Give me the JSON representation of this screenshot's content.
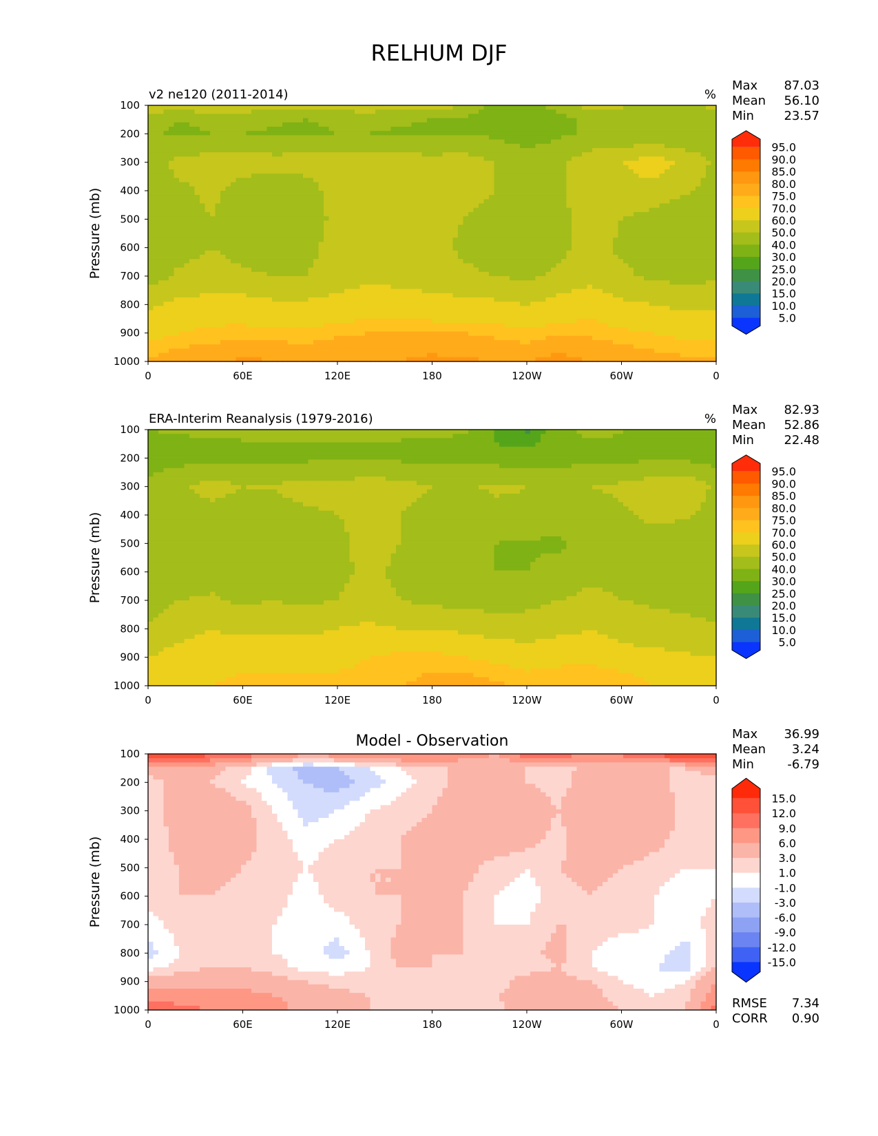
{
  "title": "RELHUM DJF",
  "chart_data": [
    {
      "type": "heatmap",
      "title": "v2 ne120 (2011-2014)",
      "units": "%",
      "ylabel": "Pressure (mb)",
      "yticks": [
        100,
        200,
        300,
        400,
        500,
        600,
        700,
        800,
        900,
        1000
      ],
      "ylim": [
        1000,
        100
      ],
      "xticks": [
        "0",
        "60E",
        "120E",
        "180",
        "120W",
        "60W",
        "0"
      ],
      "xlim": [
        0,
        360
      ],
      "stats": {
        "Max": "87.03",
        "Mean": "56.10",
        "Min": "23.57"
      },
      "colorbar": {
        "labels": [
          "95.0",
          "90.0",
          "85.0",
          "80.0",
          "75.0",
          "70.0",
          "60.0",
          "50.0",
          "40.0",
          "30.0",
          "25.0",
          "20.0",
          "15.0",
          "10.0",
          "5.0"
        ],
        "colors": [
          "#ff2d0a",
          "#ff5a00",
          "#ff7a00",
          "#ff9710",
          "#ffab1a",
          "#ffc21f",
          "#ecd01c",
          "#c7c61c",
          "#a3bd1a",
          "#7fb214",
          "#55a51a",
          "#3f9145",
          "#3a8a78",
          "#0f7896",
          "#1d5fd6",
          "#0a35ff"
        ]
      },
      "field": {
        "lon": [
          0,
          20,
          40,
          60,
          80,
          100,
          120,
          140,
          160,
          180,
          200,
          220,
          240,
          260,
          280,
          300,
          320,
          340,
          360
        ],
        "lev": [
          100,
          150,
          200,
          300,
          400,
          500,
          600,
          700,
          800,
          850,
          900,
          950,
          1000
        ],
        "values": [
          [
            55,
            57,
            58,
            57,
            56,
            55,
            56,
            57,
            56,
            55,
            50,
            35,
            35,
            45,
            54,
            52,
            45,
            45,
            55
          ],
          [
            45,
            40,
            42,
            42,
            41,
            40,
            42,
            42,
            41,
            40,
            38,
            32,
            30,
            36,
            42,
            40,
            40,
            40,
            45
          ],
          [
            42,
            38,
            40,
            40,
            39,
            38,
            40,
            40,
            39,
            38,
            40,
            38,
            35,
            38,
            42,
            41,
            42,
            40,
            42
          ],
          [
            45,
            53,
            55,
            55,
            54,
            55,
            55,
            55,
            55,
            54,
            55,
            50,
            45,
            48,
            56,
            60,
            65,
            58,
            48
          ],
          [
            44,
            48,
            52,
            46,
            42,
            45,
            55,
            56,
            56,
            55,
            53,
            50,
            46,
            48,
            55,
            56,
            57,
            52,
            46
          ],
          [
            42,
            46,
            50,
            45,
            42,
            44,
            53,
            55,
            56,
            54,
            50,
            46,
            44,
            47,
            55,
            50,
            46,
            40,
            44
          ],
          [
            42,
            46,
            50,
            46,
            43,
            46,
            55,
            56,
            56,
            54,
            48,
            46,
            44,
            47,
            55,
            48,
            46,
            45,
            45
          ],
          [
            45,
            52,
            55,
            52,
            50,
            50,
            56,
            58,
            57,
            55,
            52,
            50,
            48,
            52,
            56,
            52,
            48,
            47,
            48
          ],
          [
            58,
            63,
            63,
            64,
            62,
            62,
            63,
            65,
            64,
            64,
            63,
            62,
            60,
            64,
            68,
            62,
            60,
            58,
            58
          ],
          [
            62,
            66,
            68,
            68,
            66,
            67,
            68,
            70,
            70,
            69,
            68,
            68,
            66,
            68,
            70,
            66,
            64,
            62,
            64
          ],
          [
            66,
            70,
            72,
            73,
            72,
            72,
            74,
            75,
            76,
            76,
            75,
            74,
            72,
            74,
            74,
            72,
            70,
            68,
            68
          ],
          [
            72,
            75,
            76,
            78,
            77,
            76,
            77,
            78,
            79,
            79,
            78,
            77,
            76,
            79,
            77,
            76,
            74,
            72,
            72
          ],
          [
            76,
            78,
            79,
            81,
            80,
            79,
            79,
            80,
            80,
            81,
            81,
            80,
            80,
            82,
            80,
            79,
            78,
            77,
            76
          ]
        ]
      }
    },
    {
      "type": "heatmap",
      "title": "ERA-Interim Reanalysis (1979-2016)",
      "units": "%",
      "ylabel": "Pressure (mb)",
      "yticks": [
        100,
        200,
        300,
        400,
        500,
        600,
        700,
        800,
        900,
        1000
      ],
      "ylim": [
        1000,
        100
      ],
      "xticks": [
        "0",
        "60E",
        "120E",
        "180",
        "120W",
        "60W",
        "0"
      ],
      "xlim": [
        0,
        360
      ],
      "stats": {
        "Max": "82.93",
        "Mean": "52.86",
        "Min": "22.48"
      },
      "colorbar": {
        "labels": [
          "95.0",
          "90.0",
          "85.0",
          "80.0",
          "75.0",
          "70.0",
          "60.0",
          "50.0",
          "40.0",
          "30.0",
          "25.0",
          "20.0",
          "15.0",
          "10.0",
          "5.0"
        ],
        "colors": [
          "#ff2d0a",
          "#ff5a00",
          "#ff7a00",
          "#ff9710",
          "#ffab1a",
          "#ffc21f",
          "#ecd01c",
          "#c7c61c",
          "#a3bd1a",
          "#7fb214",
          "#55a51a",
          "#3f9145",
          "#3a8a78",
          "#0f7896",
          "#1d5fd6",
          "#0a35ff"
        ]
      },
      "field": {
        "lon": [
          0,
          20,
          40,
          60,
          80,
          100,
          120,
          140,
          160,
          180,
          200,
          220,
          240,
          260,
          280,
          300,
          320,
          340,
          360
        ],
        "lev": [
          100,
          150,
          200,
          300,
          400,
          500,
          600,
          700,
          800,
          850,
          900,
          950,
          1000
        ],
        "values": [
          [
            40,
            42,
            45,
            46,
            47,
            48,
            48,
            47,
            46,
            45,
            42,
            30,
            24,
            34,
            45,
            42,
            32,
            30,
            38
          ],
          [
            36,
            36,
            38,
            38,
            38,
            38,
            38,
            38,
            38,
            38,
            36,
            30,
            28,
            34,
            38,
            36,
            34,
            34,
            36
          ],
          [
            36,
            36,
            38,
            38,
            38,
            38,
            38,
            38,
            38,
            38,
            38,
            36,
            34,
            36,
            38,
            38,
            38,
            38,
            36
          ],
          [
            42,
            48,
            54,
            50,
            51,
            54,
            54,
            55,
            54,
            50,
            48,
            52,
            50,
            48,
            50,
            52,
            56,
            58,
            48
          ],
          [
            40,
            44,
            46,
            44,
            45,
            48,
            50,
            52,
            50,
            46,
            44,
            46,
            48,
            46,
            46,
            48,
            53,
            52,
            46
          ],
          [
            40,
            42,
            44,
            42,
            44,
            46,
            48,
            53,
            50,
            44,
            42,
            40,
            39,
            38,
            44,
            46,
            45,
            40,
            40
          ],
          [
            40,
            42,
            44,
            42,
            44,
            46,
            48,
            52,
            48,
            44,
            42,
            40,
            40,
            44,
            48,
            48,
            44,
            42,
            40
          ],
          [
            44,
            50,
            52,
            48,
            50,
            48,
            50,
            54,
            50,
            48,
            46,
            46,
            47,
            50,
            52,
            50,
            48,
            46,
            44
          ],
          [
            52,
            58,
            60,
            58,
            58,
            58,
            60,
            62,
            60,
            60,
            58,
            56,
            55,
            58,
            60,
            58,
            56,
            54,
            52
          ],
          [
            56,
            60,
            62,
            62,
            62,
            62,
            63,
            64,
            66,
            66,
            64,
            62,
            60,
            62,
            62,
            60,
            58,
            56,
            54
          ],
          [
            60,
            64,
            66,
            68,
            68,
            68,
            68,
            70,
            72,
            72,
            70,
            68,
            66,
            68,
            68,
            66,
            64,
            62,
            60
          ],
          [
            62,
            66,
            68,
            70,
            70,
            70,
            70,
            71,
            74,
            75,
            75,
            73,
            70,
            71,
            72,
            70,
            68,
            66,
            64
          ],
          [
            64,
            68,
            70,
            72,
            72,
            72,
            72,
            72,
            75,
            76,
            77,
            76,
            74,
            75,
            74,
            73,
            70,
            68,
            66
          ]
        ]
      }
    },
    {
      "type": "heatmap",
      "title": "Model - Observation",
      "units": "",
      "ylabel": "Pressure (mb)",
      "yticks": [
        100,
        200,
        300,
        400,
        500,
        600,
        700,
        800,
        900,
        1000
      ],
      "ylim": [
        1000,
        100
      ],
      "xticks": [
        "0",
        "60E",
        "120E",
        "180",
        "120W",
        "60W",
        "0"
      ],
      "xlim": [
        0,
        360
      ],
      "stats": {
        "Max": "36.99",
        "Mean": "3.24",
        "Min": "-6.79"
      },
      "extra_stats": {
        "RMSE": "7.34",
        "CORR": "0.90"
      },
      "colorbar": {
        "labels": [
          "15.0",
          "12.0",
          "9.0",
          "6.0",
          "3.0",
          "1.0",
          "-1.0",
          "-3.0",
          "-6.0",
          "-9.0",
          "-12.0",
          "-15.0"
        ],
        "colors": [
          "#ff2a0a",
          "#ff5038",
          "#ff7060",
          "#ff9785",
          "#fbb4a8",
          "#fdd6cf",
          "#ffffff",
          "#d3dcfc",
          "#afbef8",
          "#8ea2f4",
          "#6b84f1",
          "#3f62f5",
          "#0a34ff"
        ]
      },
      "field": {
        "lon": [
          0,
          20,
          40,
          60,
          80,
          100,
          120,
          140,
          160,
          180,
          200,
          220,
          240,
          260,
          280,
          300,
          320,
          340,
          360
        ],
        "lev": [
          100,
          150,
          200,
          300,
          400,
          500,
          600,
          700,
          800,
          850,
          900,
          950,
          1000
        ],
        "values": [
          [
            14,
            15,
            13,
            11,
            9,
            7,
            8,
            10,
            10,
            10,
            8,
            6,
            11,
            11,
            9,
            10,
            13,
            15,
            16
          ],
          [
            4,
            4,
            4,
            2,
            -2,
            -4,
            -3,
            -1,
            1,
            3,
            3,
            3,
            3,
            3,
            3,
            3,
            3,
            3,
            4
          ],
          [
            2,
            4,
            3,
            1,
            -1,
            -3,
            -4,
            -2,
            0,
            2,
            4,
            5,
            3,
            2,
            4,
            3,
            4,
            2,
            2
          ],
          [
            1,
            5,
            6,
            4,
            1,
            -2,
            -1,
            1,
            2,
            3,
            5,
            6,
            5,
            3,
            6,
            6,
            6,
            2,
            1
          ],
          [
            1,
            4,
            6,
            4,
            2,
            0,
            1,
            2,
            3,
            4,
            5,
            5,
            4,
            2,
            5,
            5,
            4,
            2,
            1
          ],
          [
            2,
            3,
            4,
            3,
            2,
            1,
            2,
            3,
            3,
            4,
            4,
            2,
            1,
            3,
            4,
            3,
            2,
            1,
            1
          ],
          [
            2,
            3,
            3,
            2,
            2,
            0,
            2,
            3,
            3,
            4,
            3,
            1,
            0,
            2,
            3,
            2,
            1,
            0,
            1
          ],
          [
            0,
            2,
            2,
            2,
            1,
            -1,
            0,
            2,
            3,
            4,
            3,
            1,
            1,
            3,
            3,
            2,
            1,
            0,
            2
          ],
          [
            -2,
            1,
            3,
            2,
            1,
            0,
            -2,
            1,
            4,
            3,
            3,
            2,
            2,
            4,
            1,
            -1,
            0,
            -2,
            2
          ],
          [
            0,
            2,
            3,
            3,
            2,
            0,
            0,
            1,
            3,
            3,
            2,
            2,
            2,
            3,
            1,
            0,
            -1,
            -2,
            3
          ],
          [
            4,
            5,
            5,
            5,
            4,
            3,
            2,
            2,
            2,
            2,
            2,
            2,
            4,
            4,
            3,
            1,
            0,
            1,
            6
          ],
          [
            8,
            7,
            7,
            7,
            6,
            5,
            4,
            3,
            2,
            2,
            2,
            3,
            4,
            5,
            4,
            2,
            1,
            2,
            8
          ],
          [
            12,
            10,
            9,
            9,
            7,
            5,
            4,
            3,
            2,
            2,
            2,
            2,
            5,
            5,
            4,
            3,
            2,
            3,
            10
          ]
        ]
      }
    }
  ]
}
